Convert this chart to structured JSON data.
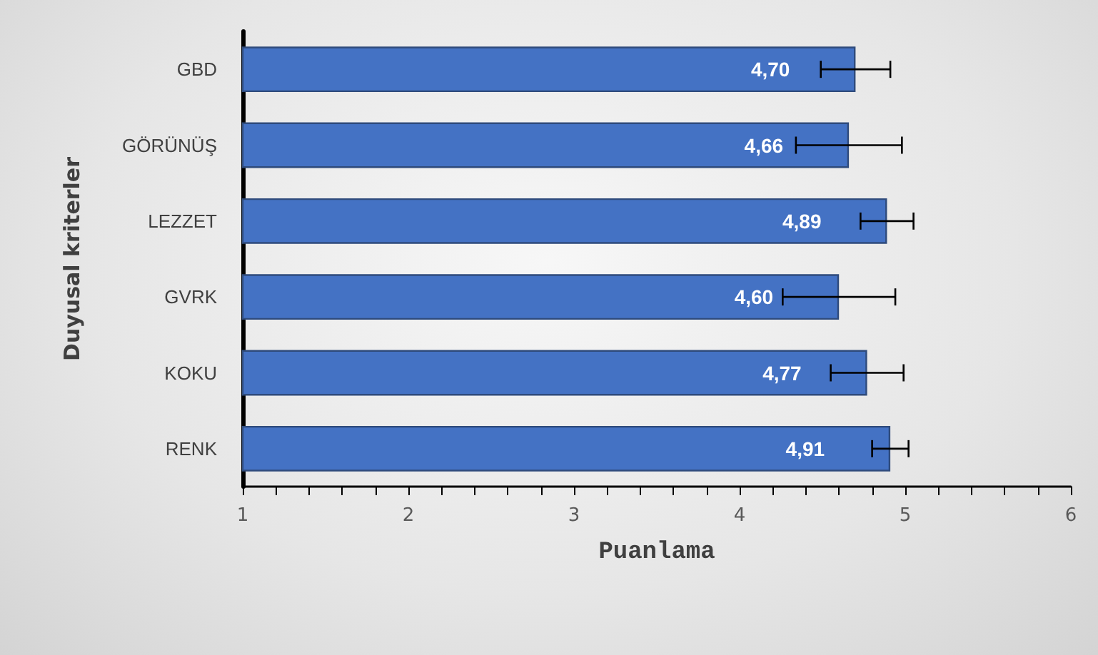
{
  "chart_data": {
    "type": "bar",
    "orientation": "horizontal",
    "xlabel": "Puanlama",
    "ylabel": "Duyusal kriterler",
    "categories": [
      "GBD",
      "GÖRÜNÜŞ",
      "LEZZET",
      "GVRK",
      "KOKU",
      "RENK"
    ],
    "values": [
      4.7,
      4.66,
      4.89,
      4.6,
      4.77,
      4.91
    ],
    "errors": [
      0.21,
      0.32,
      0.16,
      0.34,
      0.22,
      0.11
    ],
    "color": "#4472c4",
    "xlim": [
      1,
      6
    ],
    "xticks": [
      1,
      2,
      3,
      4,
      5,
      6
    ],
    "value_labels": [
      "4,70",
      "4,66",
      "4,89",
      "4,60",
      "4,77",
      "4,91"
    ],
    "grid": false
  }
}
